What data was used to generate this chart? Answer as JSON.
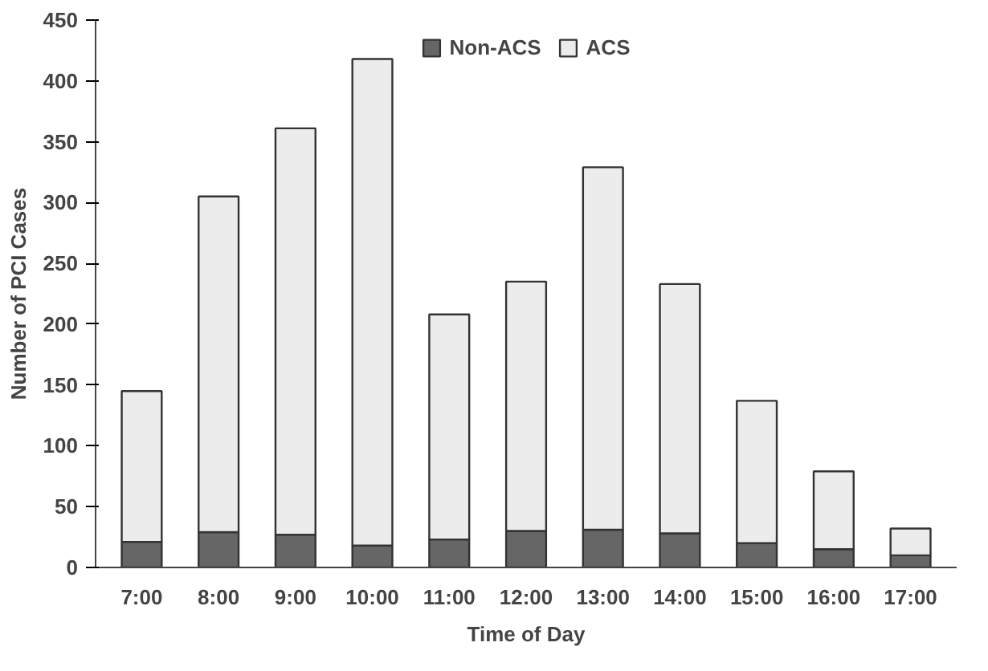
{
  "chart_data": {
    "type": "bar",
    "stacked": true,
    "xlabel": "Time of Day",
    "ylabel": "Number of PCI Cases",
    "categories": [
      "7:00",
      "8:00",
      "9:00",
      "10:00",
      "11:00",
      "12:00",
      "13:00",
      "14:00",
      "15:00",
      "16:00",
      "17:00"
    ],
    "series": [
      {
        "name": "Non-ACS",
        "color": "#666666",
        "values": [
          21,
          29,
          27,
          18,
          23,
          30,
          31,
          28,
          20,
          15,
          10
        ]
      },
      {
        "name": "ACS",
        "color": "#ececec",
        "values": [
          124,
          276,
          334,
          400,
          185,
          205,
          298,
          205,
          117,
          64,
          22
        ]
      }
    ],
    "ylim": [
      0,
      450
    ],
    "yticks": [
      0,
      50,
      100,
      150,
      200,
      250,
      300,
      350,
      400,
      450
    ],
    "grid": false,
    "legend": "top"
  }
}
